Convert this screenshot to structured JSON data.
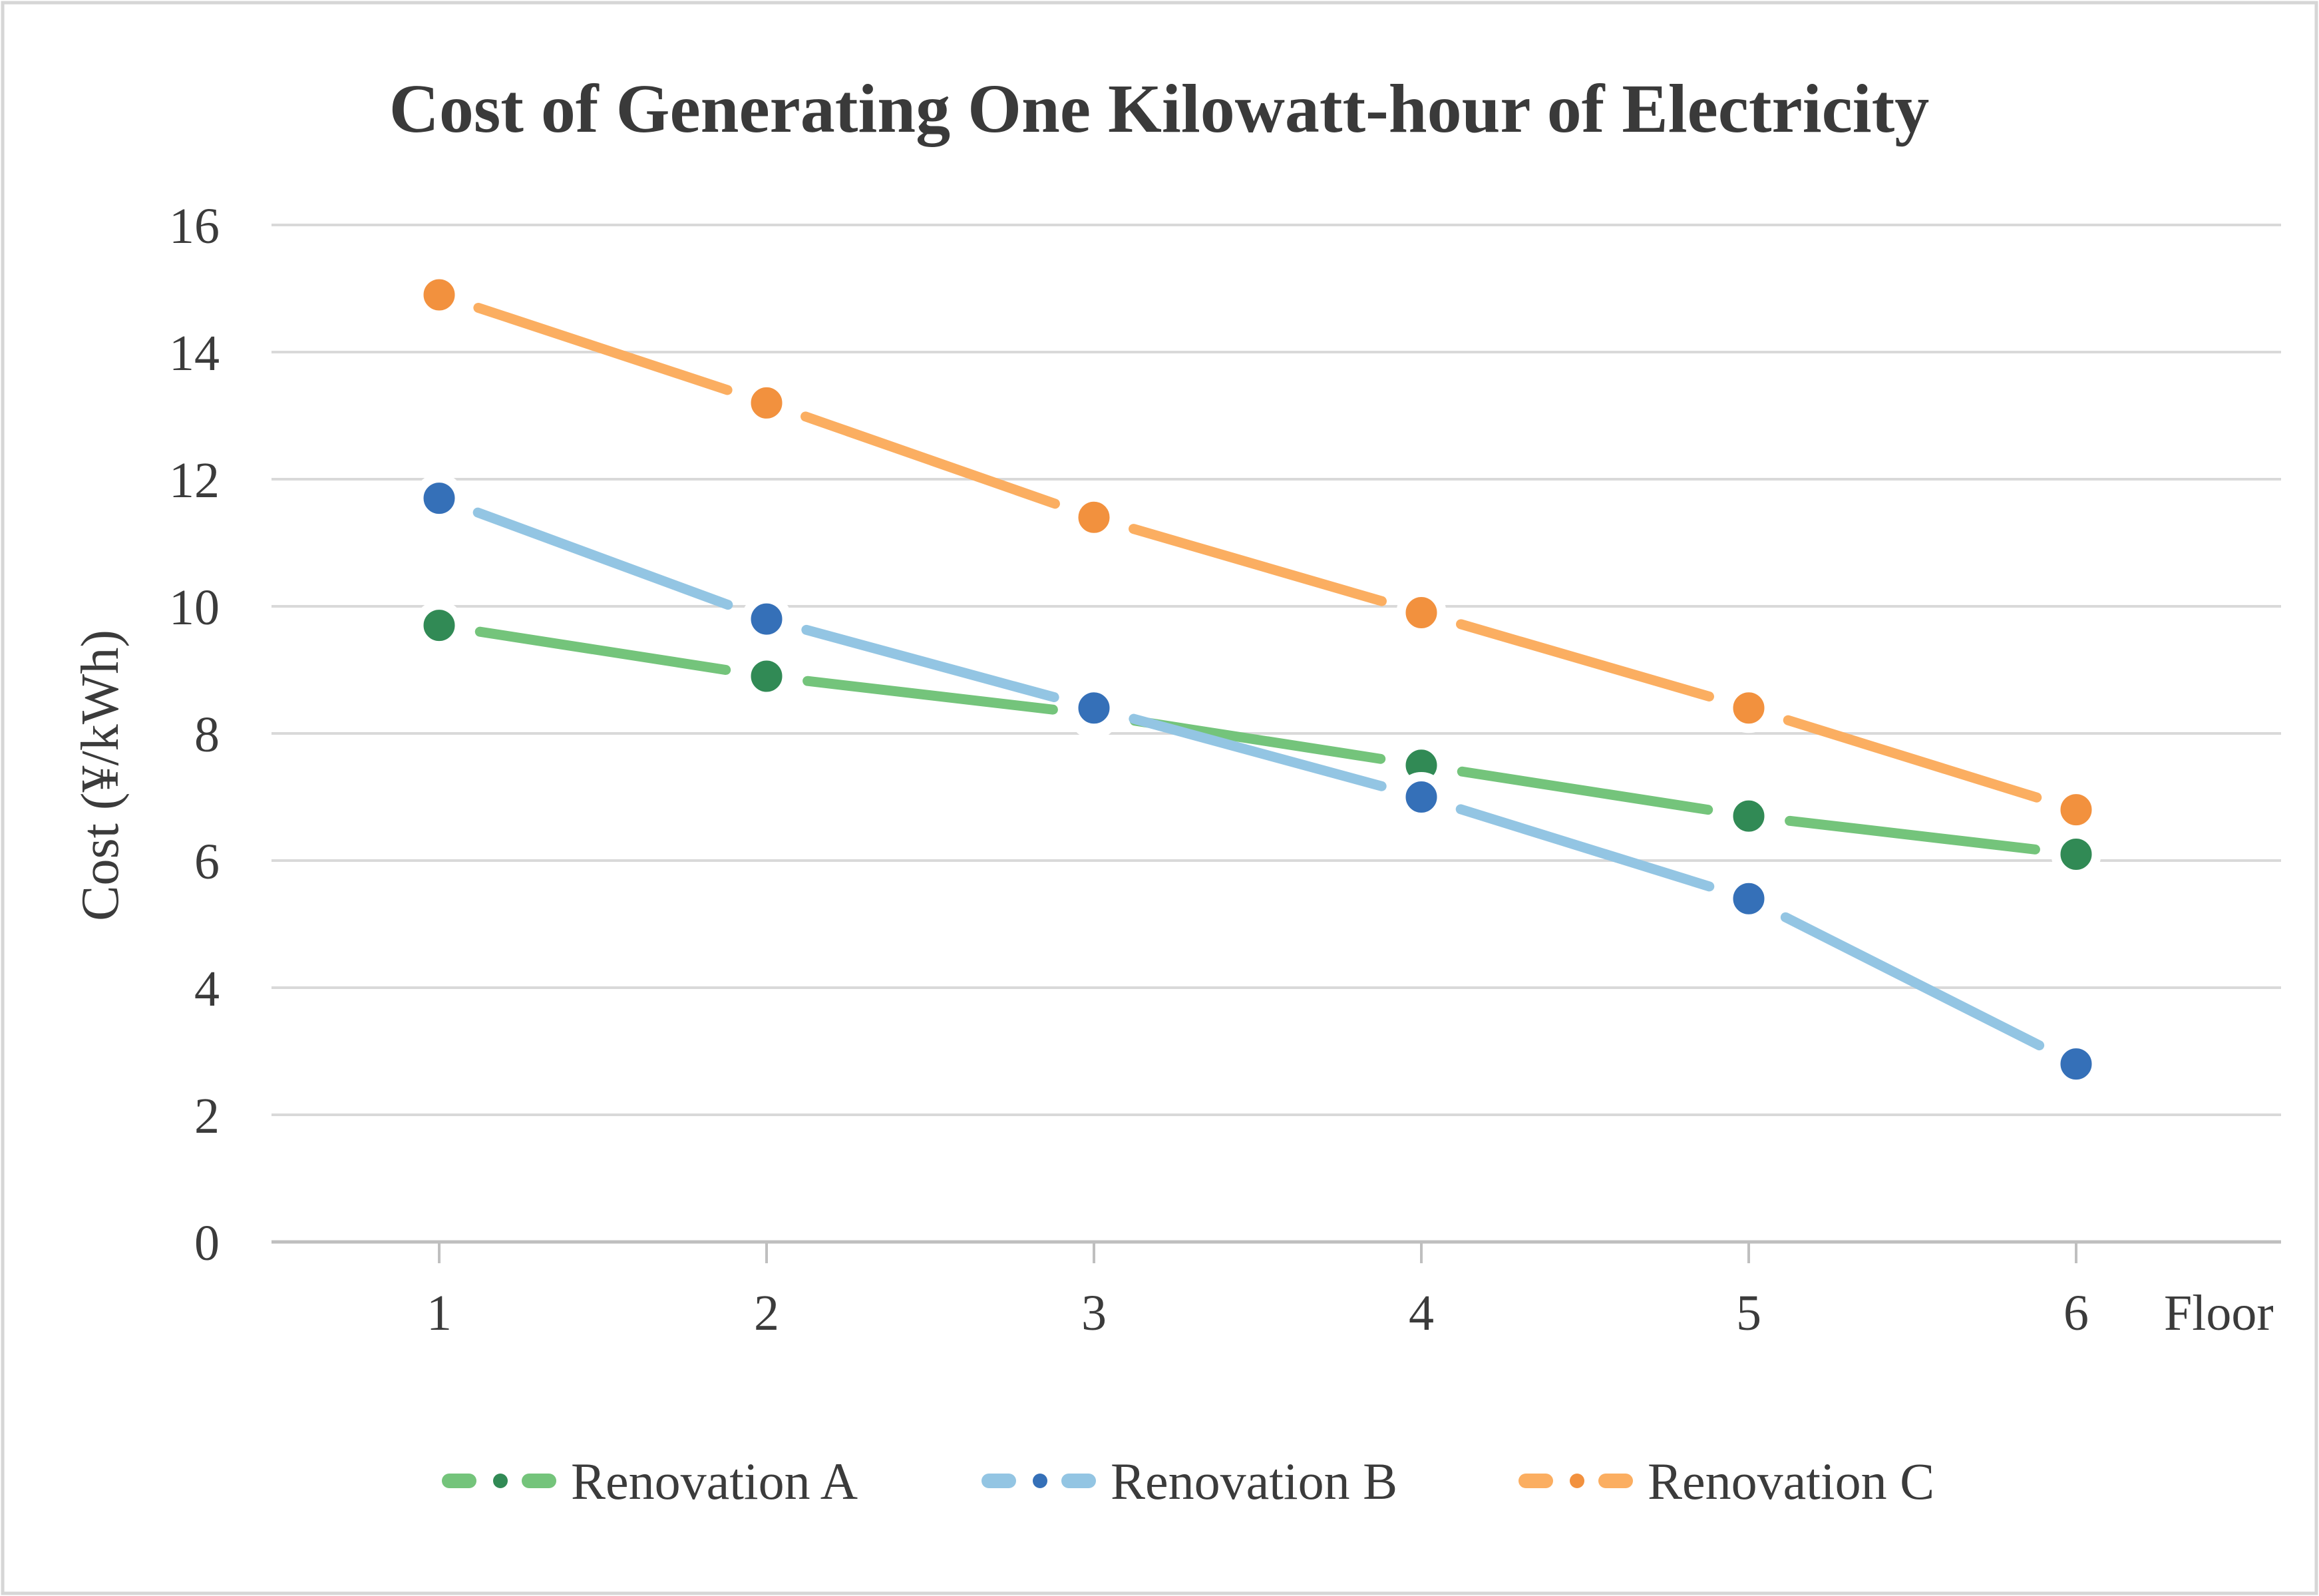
{
  "chart_data": {
    "type": "line",
    "title": "Cost of Generating One Kilowatt-hour of Electricity",
    "xlabel": "Floor",
    "ylabel": "Cost (¥/kWh)",
    "x": [
      1,
      2,
      3,
      4,
      5,
      6
    ],
    "ylim": [
      0,
      16
    ],
    "yticks": [
      0,
      2,
      4,
      6,
      8,
      10,
      12,
      14,
      16
    ],
    "grid": true,
    "legend_position": "bottom",
    "series": [
      {
        "name": "Renovation A",
        "values": [
          9.7,
          8.9,
          8.3,
          7.5,
          6.7,
          6.1
        ],
        "line_color": "#74C47B",
        "marker_color": "#318A55"
      },
      {
        "name": "Renovation B",
        "values": [
          11.7,
          9.8,
          8.4,
          7.0,
          5.4,
          2.8
        ],
        "line_color": "#93C5E3",
        "marker_color": "#3570B8"
      },
      {
        "name": "Renovation C",
        "values": [
          14.9,
          13.2,
          11.4,
          9.9,
          8.4,
          6.8
        ],
        "line_color": "#FBAE61",
        "marker_color": "#F2913E"
      }
    ]
  },
  "styles": {
    "background": "#FFFFFF",
    "border_color": "#D6D6D6",
    "gridline_color": "#D9D9D9",
    "axis_color": "#BFBFBF",
    "text_color": "#3B3B3B",
    "marker_halo": "#FFFFFF"
  }
}
